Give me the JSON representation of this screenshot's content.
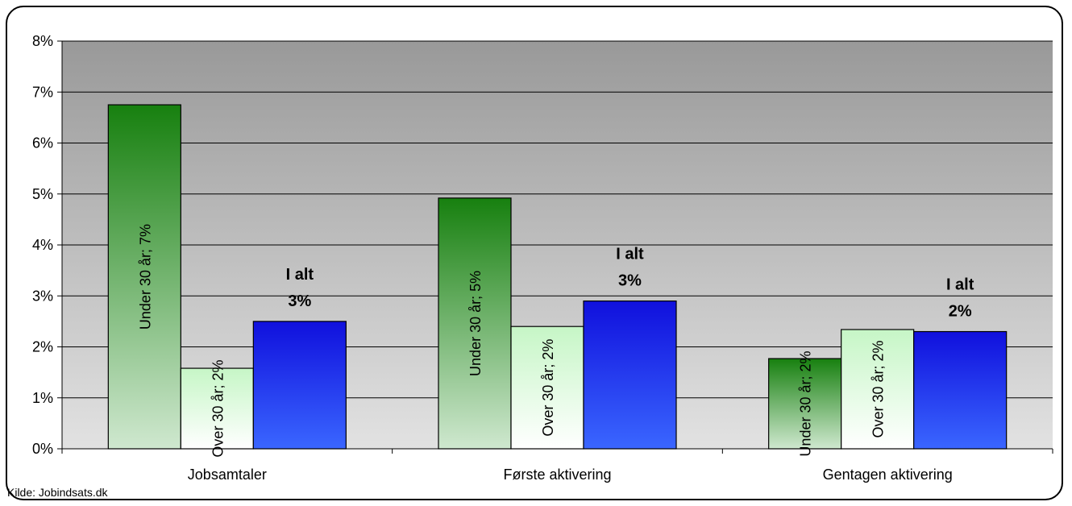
{
  "chart_data": {
    "type": "bar",
    "categories": [
      "Jobsamtaler",
      "Første aktivering",
      "Gentagen aktivering"
    ],
    "y_ticks": [
      "0%",
      "1%",
      "2%",
      "3%",
      "4%",
      "5%",
      "6%",
      "7%",
      "8%"
    ],
    "ylim": [
      0,
      8
    ],
    "grid": true,
    "series": [
      {
        "name": "Under 30 år",
        "values": [
          6.75,
          4.92,
          1.77
        ],
        "labels": [
          "Under 30 år; 7%",
          "Under 30 år; 5%",
          "Under 30 år; 2%"
        ],
        "colors": {
          "top": "#17800f",
          "bottom": "#cfe8cf"
        }
      },
      {
        "name": "Over 30 år",
        "values": [
          1.58,
          2.4,
          2.34
        ],
        "labels": [
          "Over 30 år; 2%",
          "Over 30 år; 2%",
          "Over 30 år; 2%"
        ],
        "colors": {
          "top": "#c6f6c6",
          "bottom": "#ffffff"
        }
      },
      {
        "name": "I alt",
        "values": [
          2.5,
          2.9,
          2.3
        ],
        "labels": [
          "I alt\n3%",
          "I alt\n3%",
          "I alt\n2%"
        ],
        "colors": {
          "top": "#1010dd",
          "bottom": "#3a66ff"
        }
      }
    ],
    "plot_colors": {
      "top": "#999999",
      "bottom": "#e2e2e2",
      "grid": "#000000"
    }
  },
  "source": "Kilde: Jobindsats.dk"
}
